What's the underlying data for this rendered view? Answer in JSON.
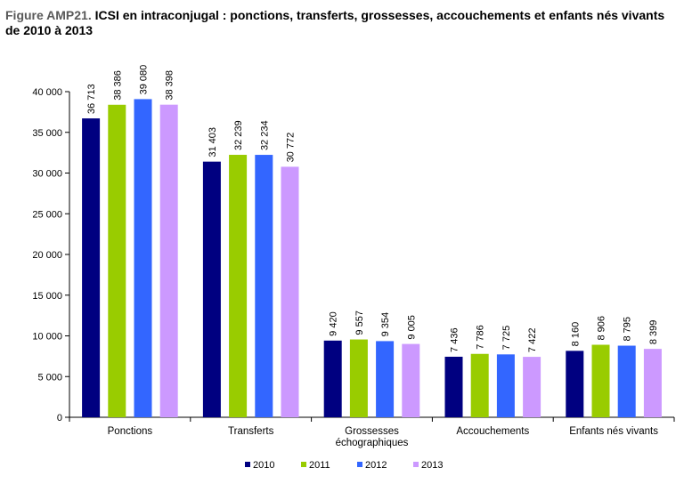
{
  "title": {
    "prefix": "Figure AMP21.",
    "text": "ICSI en intraconjugal : ponctions, transferts, grossesses, accouchements et enfants nés vivants de 2010 à 2013"
  },
  "chart_data": {
    "type": "bar",
    "categories": [
      "Ponctions",
      "Transferts",
      "Grossesses échographiques",
      "Accouchements",
      "Enfants nés vivants"
    ],
    "category_lines": [
      [
        "Ponctions"
      ],
      [
        "Transferts"
      ],
      [
        "Grossesses",
        "échographiques"
      ],
      [
        "Accouchements"
      ],
      [
        "Enfants nés vivants"
      ]
    ],
    "series": [
      {
        "name": "2010",
        "color": "#000080",
        "values": [
          36713,
          31403,
          9420,
          7436,
          8160
        ],
        "labels": [
          "36 713",
          "31 403",
          "9 420",
          "7 436",
          "8 160"
        ]
      },
      {
        "name": "2011",
        "color": "#99CC00",
        "values": [
          38386,
          32239,
          9557,
          7786,
          8906
        ],
        "labels": [
          "38 386",
          "32 239",
          "9 557",
          "7 786",
          "8 906"
        ]
      },
      {
        "name": "2012",
        "color": "#3366FF",
        "values": [
          39080,
          32234,
          9354,
          7725,
          8795
        ],
        "labels": [
          "39 080",
          "32 234",
          "9 354",
          "7 725",
          "8 795"
        ]
      },
      {
        "name": "2013",
        "color": "#CC99FF",
        "values": [
          38398,
          30772,
          9005,
          7422,
          8399
        ],
        "labels": [
          "38 398",
          "30 772",
          "9 005",
          "7 422",
          "8 399"
        ]
      }
    ],
    "yticks": [
      0,
      5000,
      10000,
      15000,
      20000,
      25000,
      30000,
      35000,
      40000
    ],
    "ytick_labels": [
      "0",
      "5 000",
      "10 000",
      "15 000",
      "20 000",
      "25 000",
      "30 000",
      "35 000",
      "40 000"
    ],
    "ylim": [
      0,
      40000
    ],
    "grid": false,
    "legend_position": "bottom"
  }
}
